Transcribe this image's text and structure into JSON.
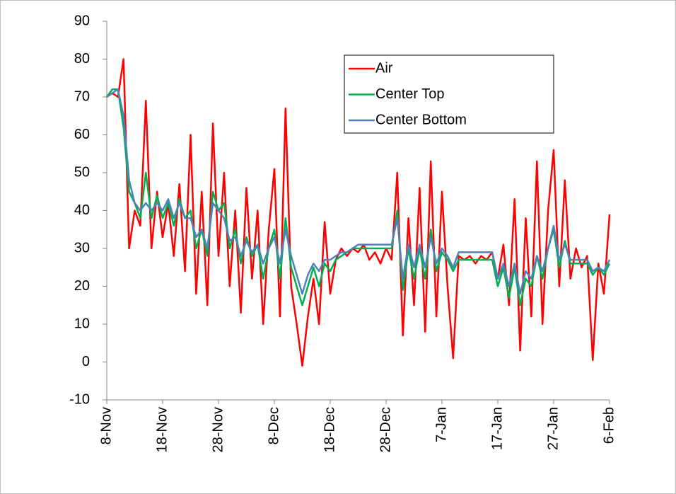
{
  "chart_data": {
    "type": "line",
    "x": [
      0,
      1,
      2,
      3,
      4,
      5,
      6,
      7,
      8,
      9,
      10,
      11,
      12,
      13,
      14,
      15,
      16,
      17,
      18,
      19,
      20,
      21,
      22,
      23,
      24,
      25,
      26,
      27,
      28,
      29,
      30,
      31,
      32,
      33,
      34,
      35,
      36,
      37,
      38,
      39,
      40,
      41,
      42,
      43,
      44,
      45,
      46,
      47,
      48,
      49,
      50,
      51,
      52,
      53,
      54,
      55,
      56,
      57,
      58,
      59,
      60,
      61,
      62,
      63,
      64,
      65,
      66,
      67,
      68,
      69,
      70,
      71,
      72,
      73,
      74,
      75,
      76,
      77,
      78,
      79,
      80,
      81,
      82,
      83,
      84,
      85,
      86,
      87,
      88,
      89,
      90
    ],
    "series": [
      {
        "name": "Air",
        "color": "#ff0000",
        "values": [
          70,
          71,
          70,
          80,
          30,
          40,
          36,
          69,
          30,
          45,
          33,
          42,
          28,
          47,
          24,
          60,
          18,
          45,
          15,
          63,
          28,
          50,
          20,
          40,
          13,
          46,
          22,
          40,
          10,
          35,
          51,
          12,
          67,
          20,
          10,
          -1,
          12,
          22,
          10,
          37,
          18,
          27,
          30,
          28,
          30,
          29,
          31,
          27,
          29,
          26,
          30,
          27,
          50,
          7,
          38,
          15,
          46,
          8,
          53,
          12,
          45,
          20,
          1,
          28,
          27,
          28,
          26,
          28,
          27,
          29,
          22,
          31,
          15,
          43,
          3,
          38,
          12,
          53,
          10,
          40,
          56,
          20,
          48,
          22,
          30,
          25,
          28,
          0.5,
          26,
          18,
          39
        ]
      },
      {
        "name": "Center Top",
        "color": "#00b050",
        "values": [
          70,
          72,
          72,
          62,
          45,
          42,
          38,
          50,
          38,
          44,
          38,
          42,
          36,
          43,
          38,
          40,
          30,
          35,
          28,
          45,
          40,
          42,
          30,
          35,
          26,
          33,
          28,
          31,
          22,
          30,
          35,
          22,
          38,
          25,
          20,
          15,
          20,
          25,
          20,
          26,
          24,
          27,
          28,
          29,
          30,
          30,
          30,
          30,
          30,
          30,
          30,
          30,
          40,
          19,
          30,
          22,
          30,
          22,
          35,
          24,
          29,
          27,
          24,
          27,
          27,
          27,
          27,
          27,
          27,
          27,
          20,
          25,
          17,
          25,
          15,
          22,
          20,
          28,
          22,
          30,
          35,
          25,
          32,
          26,
          26,
          26,
          26,
          23,
          25,
          23,
          26
        ]
      },
      {
        "name": "Center Bottom",
        "color": "#4f81bd",
        "values": [
          70,
          71,
          72,
          65,
          48,
          42,
          40,
          42,
          40,
          42,
          40,
          43,
          38,
          42,
          38,
          38,
          33,
          35,
          30,
          42,
          40,
          38,
          32,
          33,
          28,
          32,
          29,
          31,
          26,
          30,
          33,
          26,
          35,
          28,
          23,
          18,
          23,
          26,
          24,
          27,
          27,
          28,
          29,
          29,
          30,
          31,
          31,
          31,
          31,
          31,
          31,
          31,
          38,
          22,
          31,
          25,
          31,
          25,
          33,
          26,
          30,
          28,
          25,
          29,
          29,
          29,
          29,
          29,
          29,
          29,
          22,
          26,
          20,
          26,
          18,
          24,
          22,
          28,
          24,
          30,
          36,
          27,
          31,
          27,
          27,
          27,
          27,
          24,
          25,
          24,
          27
        ]
      }
    ],
    "xlim": [
      0,
      90
    ],
    "xticks": [
      {
        "value": 0,
        "label": "8-Nov"
      },
      {
        "value": 10,
        "label": "18-Nov"
      },
      {
        "value": 20,
        "label": "28-Nov"
      },
      {
        "value": 30,
        "label": "8-Dec"
      },
      {
        "value": 40,
        "label": "18-Dec"
      },
      {
        "value": 50,
        "label": "28-Dec"
      },
      {
        "value": 60,
        "label": "7-Jan"
      },
      {
        "value": 70,
        "label": "17-Jan"
      },
      {
        "value": 80,
        "label": "27-Jan"
      },
      {
        "value": 90,
        "label": "6-Feb"
      }
    ],
    "ylim": [
      -10,
      90
    ],
    "yticks": [
      -10,
      0,
      10,
      20,
      30,
      40,
      50,
      60,
      70,
      80,
      90
    ],
    "grid": false,
    "legend": "upper right"
  }
}
